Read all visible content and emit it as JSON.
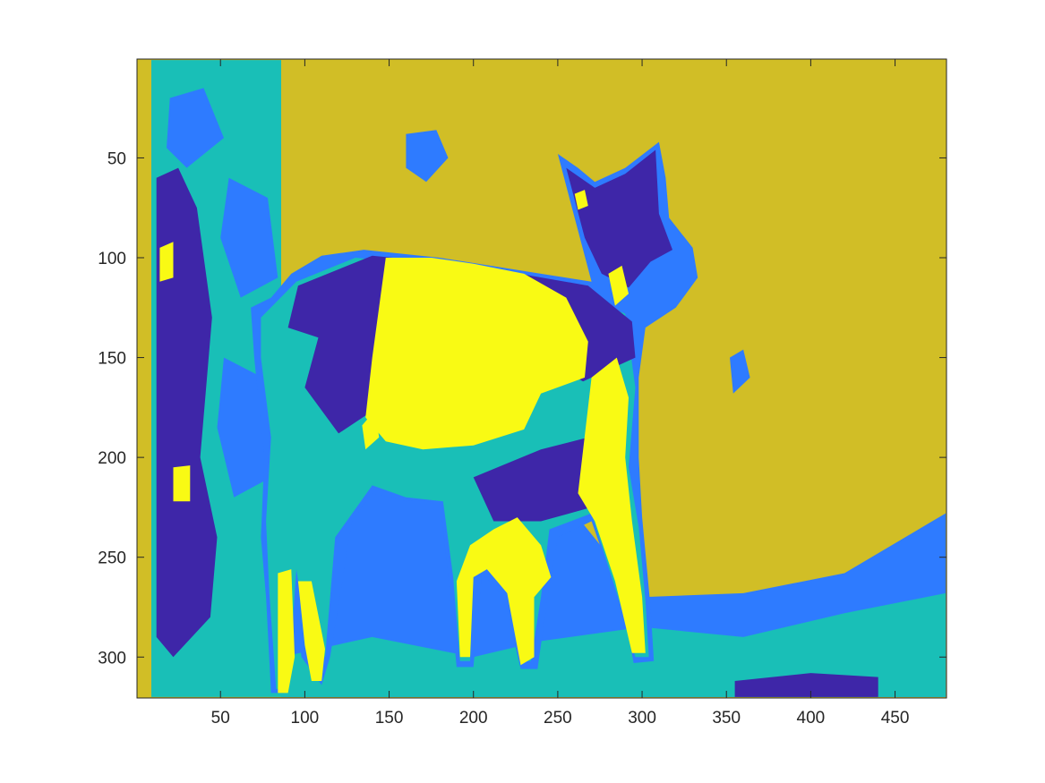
{
  "chart_data": {
    "type": "heatmap",
    "title": "",
    "xlabel": "",
    "ylabel": "",
    "xlim": [
      0.5,
      480.5
    ],
    "ylim": [
      0.5,
      320.5
    ],
    "y_direction": "reverse",
    "x_ticks": [
      50,
      100,
      150,
      200,
      250,
      300,
      350,
      400,
      450
    ],
    "x_tick_labels": [
      "50",
      "100",
      "150",
      "200",
      "250",
      "300",
      "350",
      "400",
      "450"
    ],
    "y_ticks": [
      50,
      100,
      150,
      200,
      250,
      300
    ],
    "y_tick_labels": [
      "50",
      "100",
      "150",
      "200",
      "250",
      "300"
    ],
    "colormap": [
      "#3E26A8",
      "#2E7BFF",
      "#19BFB7",
      "#D1BE26",
      "#F9FA14"
    ],
    "cluster_labels": [
      1,
      2,
      3,
      4,
      5
    ],
    "background_cluster": 4,
    "regions": [
      {
        "name": "tree-trunk",
        "cluster": 3,
        "polygon": [
          [
            9,
            1
          ],
          [
            86,
            1
          ],
          [
            86,
            320
          ],
          [
            9,
            320
          ]
        ]
      },
      {
        "name": "trunk-left-dark",
        "cluster": 1,
        "polygon": [
          [
            12,
            60
          ],
          [
            25,
            55
          ],
          [
            36,
            75
          ],
          [
            45,
            130
          ],
          [
            38,
            200
          ],
          [
            48,
            240
          ],
          [
            44,
            280
          ],
          [
            22,
            300
          ],
          [
            12,
            290
          ]
        ]
      },
      {
        "name": "trunk-blue-1",
        "cluster": 2,
        "polygon": [
          [
            20,
            20
          ],
          [
            40,
            15
          ],
          [
            52,
            40
          ],
          [
            30,
            55
          ],
          [
            18,
            45
          ]
        ]
      },
      {
        "name": "trunk-blue-2",
        "cluster": 2,
        "polygon": [
          [
            55,
            60
          ],
          [
            78,
            70
          ],
          [
            84,
            110
          ],
          [
            62,
            120
          ],
          [
            50,
            90
          ]
        ]
      },
      {
        "name": "trunk-blue-3",
        "cluster": 2,
        "polygon": [
          [
            52,
            150
          ],
          [
            75,
            160
          ],
          [
            80,
            210
          ],
          [
            58,
            220
          ],
          [
            48,
            185
          ]
        ]
      },
      {
        "name": "trunk-yellow-1",
        "cluster": 5,
        "polygon": [
          [
            14,
            95
          ],
          [
            22,
            92
          ],
          [
            22,
            110
          ],
          [
            14,
            112
          ]
        ]
      },
      {
        "name": "trunk-yellow-2",
        "cluster": 5,
        "polygon": [
          [
            22,
            205
          ],
          [
            32,
            204
          ],
          [
            32,
            222
          ],
          [
            22,
            222
          ]
        ]
      },
      {
        "name": "ground-blue",
        "cluster": 2,
        "polygon": [
          [
            86,
            210
          ],
          [
            130,
            205
          ],
          [
            200,
            215
          ],
          [
            260,
            228
          ],
          [
            300,
            270
          ],
          [
            360,
            268
          ],
          [
            420,
            258
          ],
          [
            470,
            233
          ],
          [
            480,
            228
          ],
          [
            480,
            320
          ],
          [
            86,
            320
          ]
        ]
      },
      {
        "name": "ground-teal",
        "cluster": 3,
        "polygon": [
          [
            86,
            300
          ],
          [
            140,
            290
          ],
          [
            200,
            300
          ],
          [
            240,
            292
          ],
          [
            300,
            285
          ],
          [
            360,
            290
          ],
          [
            420,
            278
          ],
          [
            480,
            268
          ],
          [
            480,
            320
          ],
          [
            86,
            320
          ]
        ]
      },
      {
        "name": "ground-dark-strip",
        "cluster": 1,
        "polygon": [
          [
            355,
            312
          ],
          [
            400,
            308
          ],
          [
            440,
            310
          ],
          [
            440,
            320
          ],
          [
            355,
            320
          ]
        ]
      },
      {
        "name": "patch-blue-1",
        "cluster": 2,
        "polygon": [
          [
            160,
            38
          ],
          [
            178,
            36
          ],
          [
            185,
            50
          ],
          [
            172,
            62
          ],
          [
            160,
            55
          ]
        ]
      },
      {
        "name": "patch-blue-2",
        "cluster": 2,
        "polygon": [
          [
            352,
            150
          ],
          [
            360,
            146
          ],
          [
            364,
            160
          ],
          [
            354,
            168
          ]
        ]
      },
      {
        "name": "deer-outline",
        "cluster": 2,
        "polygon": [
          [
            68,
            125
          ],
          [
            80,
            120
          ],
          [
            92,
            108
          ],
          [
            110,
            99
          ],
          [
            135,
            96
          ],
          [
            180,
            100
          ],
          [
            240,
            108
          ],
          [
            270,
            112
          ],
          [
            260,
            80
          ],
          [
            250,
            48
          ],
          [
            262,
            55
          ],
          [
            272,
            62
          ],
          [
            290,
            55
          ],
          [
            310,
            42
          ],
          [
            314,
            60
          ],
          [
            316,
            80
          ],
          [
            330,
            95
          ],
          [
            333,
            110
          ],
          [
            320,
            125
          ],
          [
            302,
            135
          ],
          [
            298,
            160
          ],
          [
            298,
            200
          ],
          [
            300,
            230
          ],
          [
            305,
            275
          ],
          [
            307,
            302
          ],
          [
            295,
            303
          ],
          [
            290,
            280
          ],
          [
            270,
            232
          ],
          [
            250,
            240
          ],
          [
            244,
            270
          ],
          [
            238,
            306
          ],
          [
            228,
            306
          ],
          [
            218,
            270
          ],
          [
            205,
            258
          ],
          [
            200,
            305
          ],
          [
            190,
            305
          ],
          [
            185,
            260
          ],
          [
            180,
            220
          ],
          [
            160,
            222
          ],
          [
            140,
            218
          ],
          [
            128,
            232
          ],
          [
            115,
            300
          ],
          [
            110,
            314
          ],
          [
            98,
            300
          ],
          [
            93,
            262
          ],
          [
            88,
            318
          ],
          [
            80,
            318
          ],
          [
            77,
            270
          ],
          [
            74,
            240
          ],
          [
            76,
            200
          ],
          [
            70,
            150
          ]
        ]
      },
      {
        "name": "deer-body",
        "cluster": 3,
        "polygon": [
          [
            74,
            130
          ],
          [
            95,
            112
          ],
          [
            130,
            100
          ],
          [
            180,
            104
          ],
          [
            240,
            112
          ],
          [
            290,
            128
          ],
          [
            296,
            165
          ],
          [
            292,
            205
          ],
          [
            298,
            235
          ],
          [
            302,
            272
          ],
          [
            304,
            300
          ],
          [
            296,
            300
          ],
          [
            288,
            276
          ],
          [
            270,
            228
          ],
          [
            245,
            236
          ],
          [
            240,
            270
          ],
          [
            234,
            302
          ],
          [
            228,
            302
          ],
          [
            220,
            268
          ],
          [
            210,
            240
          ],
          [
            200,
            258
          ],
          [
            198,
            302
          ],
          [
            192,
            302
          ],
          [
            188,
            260
          ],
          [
            182,
            222
          ],
          [
            160,
            220
          ],
          [
            140,
            214
          ],
          [
            118,
            240
          ],
          [
            112,
            300
          ],
          [
            102,
            296
          ],
          [
            95,
            256
          ],
          [
            90,
            316
          ],
          [
            83,
            316
          ],
          [
            79,
            268
          ],
          [
            77,
            232
          ],
          [
            80,
            190
          ],
          [
            74,
            150
          ]
        ]
      },
      {
        "name": "deer-dark-back",
        "cluster": 1,
        "polygon": [
          [
            96,
            114
          ],
          [
            140,
            99
          ],
          [
            200,
            104
          ],
          [
            268,
            114
          ],
          [
            294,
            132
          ],
          [
            296,
            150
          ],
          [
            265,
            162
          ],
          [
            240,
            150
          ],
          [
            170,
            160
          ],
          [
            120,
            188
          ],
          [
            100,
            165
          ],
          [
            108,
            140
          ],
          [
            90,
            135
          ]
        ]
      },
      {
        "name": "deer-dark-head",
        "cluster": 1,
        "polygon": [
          [
            255,
            55
          ],
          [
            272,
            65
          ],
          [
            290,
            58
          ],
          [
            308,
            46
          ],
          [
            310,
            78
          ],
          [
            318,
            96
          ],
          [
            305,
            102
          ],
          [
            292,
            115
          ],
          [
            276,
            108
          ],
          [
            266,
            90
          ]
        ]
      },
      {
        "name": "deer-dark-belly",
        "cluster": 1,
        "polygon": [
          [
            200,
            210
          ],
          [
            240,
            196
          ],
          [
            268,
            190
          ],
          [
            280,
            205
          ],
          [
            270,
            225
          ],
          [
            240,
            232
          ],
          [
            212,
            232
          ]
        ]
      },
      {
        "name": "deer-yellow-flank",
        "cluster": 5,
        "polygon": [
          [
            148,
            100
          ],
          [
            175,
            100
          ],
          [
            200,
            103
          ],
          [
            230,
            108
          ],
          [
            255,
            120
          ],
          [
            268,
            142
          ],
          [
            266,
            160
          ],
          [
            240,
            168
          ],
          [
            230,
            186
          ],
          [
            200,
            194
          ],
          [
            170,
            196
          ],
          [
            148,
            192
          ],
          [
            136,
            180
          ],
          [
            140,
            150
          ]
        ]
      },
      {
        "name": "deer-yellow-foreleg",
        "cluster": 5,
        "polygon": [
          [
            270,
            160
          ],
          [
            285,
            150
          ],
          [
            292,
            170
          ],
          [
            290,
            200
          ],
          [
            294,
            232
          ],
          [
            300,
            270
          ],
          [
            302,
            298
          ],
          [
            294,
            298
          ],
          [
            284,
            262
          ],
          [
            272,
            232
          ],
          [
            262,
            218
          ]
        ]
      },
      {
        "name": "deer-yellow-foreleg-2",
        "cluster": 5,
        "polygon": [
          [
            212,
            236
          ],
          [
            226,
            230
          ],
          [
            240,
            244
          ],
          [
            246,
            260
          ],
          [
            236,
            270
          ],
          [
            236,
            300
          ],
          [
            228,
            304
          ],
          [
            220,
            268
          ],
          [
            208,
            256
          ],
          [
            200,
            260
          ],
          [
            198,
            300
          ],
          [
            192,
            300
          ],
          [
            190,
            262
          ],
          [
            198,
            244
          ]
        ]
      },
      {
        "name": "deer-yellow-hind-leg",
        "cluster": 5,
        "polygon": [
          [
            84,
            258
          ],
          [
            92,
            256
          ],
          [
            94,
            300
          ],
          [
            90,
            318
          ],
          [
            84,
            318
          ]
        ]
      },
      {
        "name": "deer-yellow-hind-leg-2",
        "cluster": 5,
        "polygon": [
          [
            96,
            262
          ],
          [
            104,
            262
          ],
          [
            112,
            296
          ],
          [
            110,
            312
          ],
          [
            104,
            312
          ],
          [
            100,
            294
          ]
        ]
      },
      {
        "name": "deer-yellow-ear",
        "cluster": 5,
        "polygon": [
          [
            260,
            68
          ],
          [
            266,
            66
          ],
          [
            268,
            74
          ],
          [
            262,
            76
          ]
        ]
      },
      {
        "name": "deer-yellow-chin",
        "cluster": 5,
        "polygon": [
          [
            280,
            108
          ],
          [
            288,
            104
          ],
          [
            292,
            118
          ],
          [
            284,
            124
          ]
        ]
      },
      {
        "name": "deer-yellow-rump",
        "cluster": 5,
        "polygon": [
          [
            134,
            184
          ],
          [
            142,
            176
          ],
          [
            144,
            190
          ],
          [
            136,
            196
          ]
        ]
      }
    ]
  }
}
